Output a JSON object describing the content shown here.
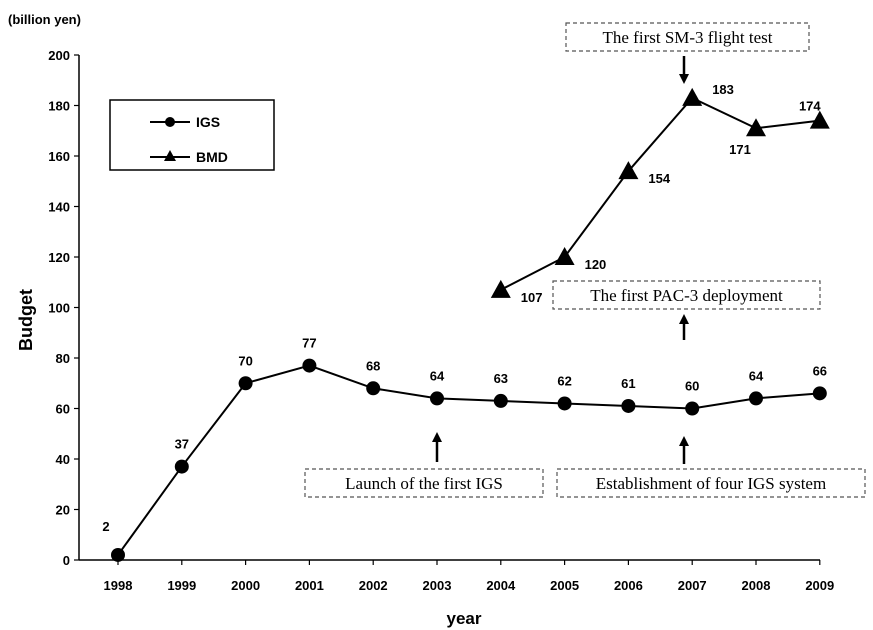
{
  "chart_data": {
    "type": "line",
    "title": "",
    "unit_label": "(billion yen)",
    "xlabel": "year",
    "ylabel": "Budget",
    "ylim": [
      0,
      200
    ],
    "yticks": [
      0,
      20,
      40,
      60,
      80,
      100,
      120,
      140,
      160,
      180,
      200
    ],
    "categories": [
      "1998",
      "1999",
      "2000",
      "2001",
      "2002",
      "2003",
      "2004",
      "2005",
      "2006",
      "2007",
      "2008",
      "2009"
    ],
    "series": [
      {
        "name": "IGS",
        "marker": "circle",
        "values": [
          2,
          37,
          70,
          77,
          68,
          64,
          63,
          62,
          61,
          60,
          64,
          66
        ]
      },
      {
        "name": "BMD",
        "marker": "triangle",
        "values": [
          null,
          null,
          null,
          null,
          null,
          null,
          107,
          120,
          154,
          183,
          171,
          174
        ]
      }
    ],
    "legend": {
      "position": "top-left"
    },
    "grid": false,
    "annotations": [
      {
        "text": "The first SM-3 flight test",
        "category": "2007",
        "arrow": "down",
        "target_series": "BMD"
      },
      {
        "text": "The first PAC-3 deployment",
        "category": "2007",
        "arrow": "up",
        "target_series": "BMD"
      },
      {
        "text": "Launch of the first IGS",
        "category": "2003",
        "arrow": "up",
        "target_series": "IGS"
      },
      {
        "text": "Establishment of four IGS system",
        "category": "2007",
        "arrow": "up",
        "target_series": "IGS"
      }
    ]
  }
}
